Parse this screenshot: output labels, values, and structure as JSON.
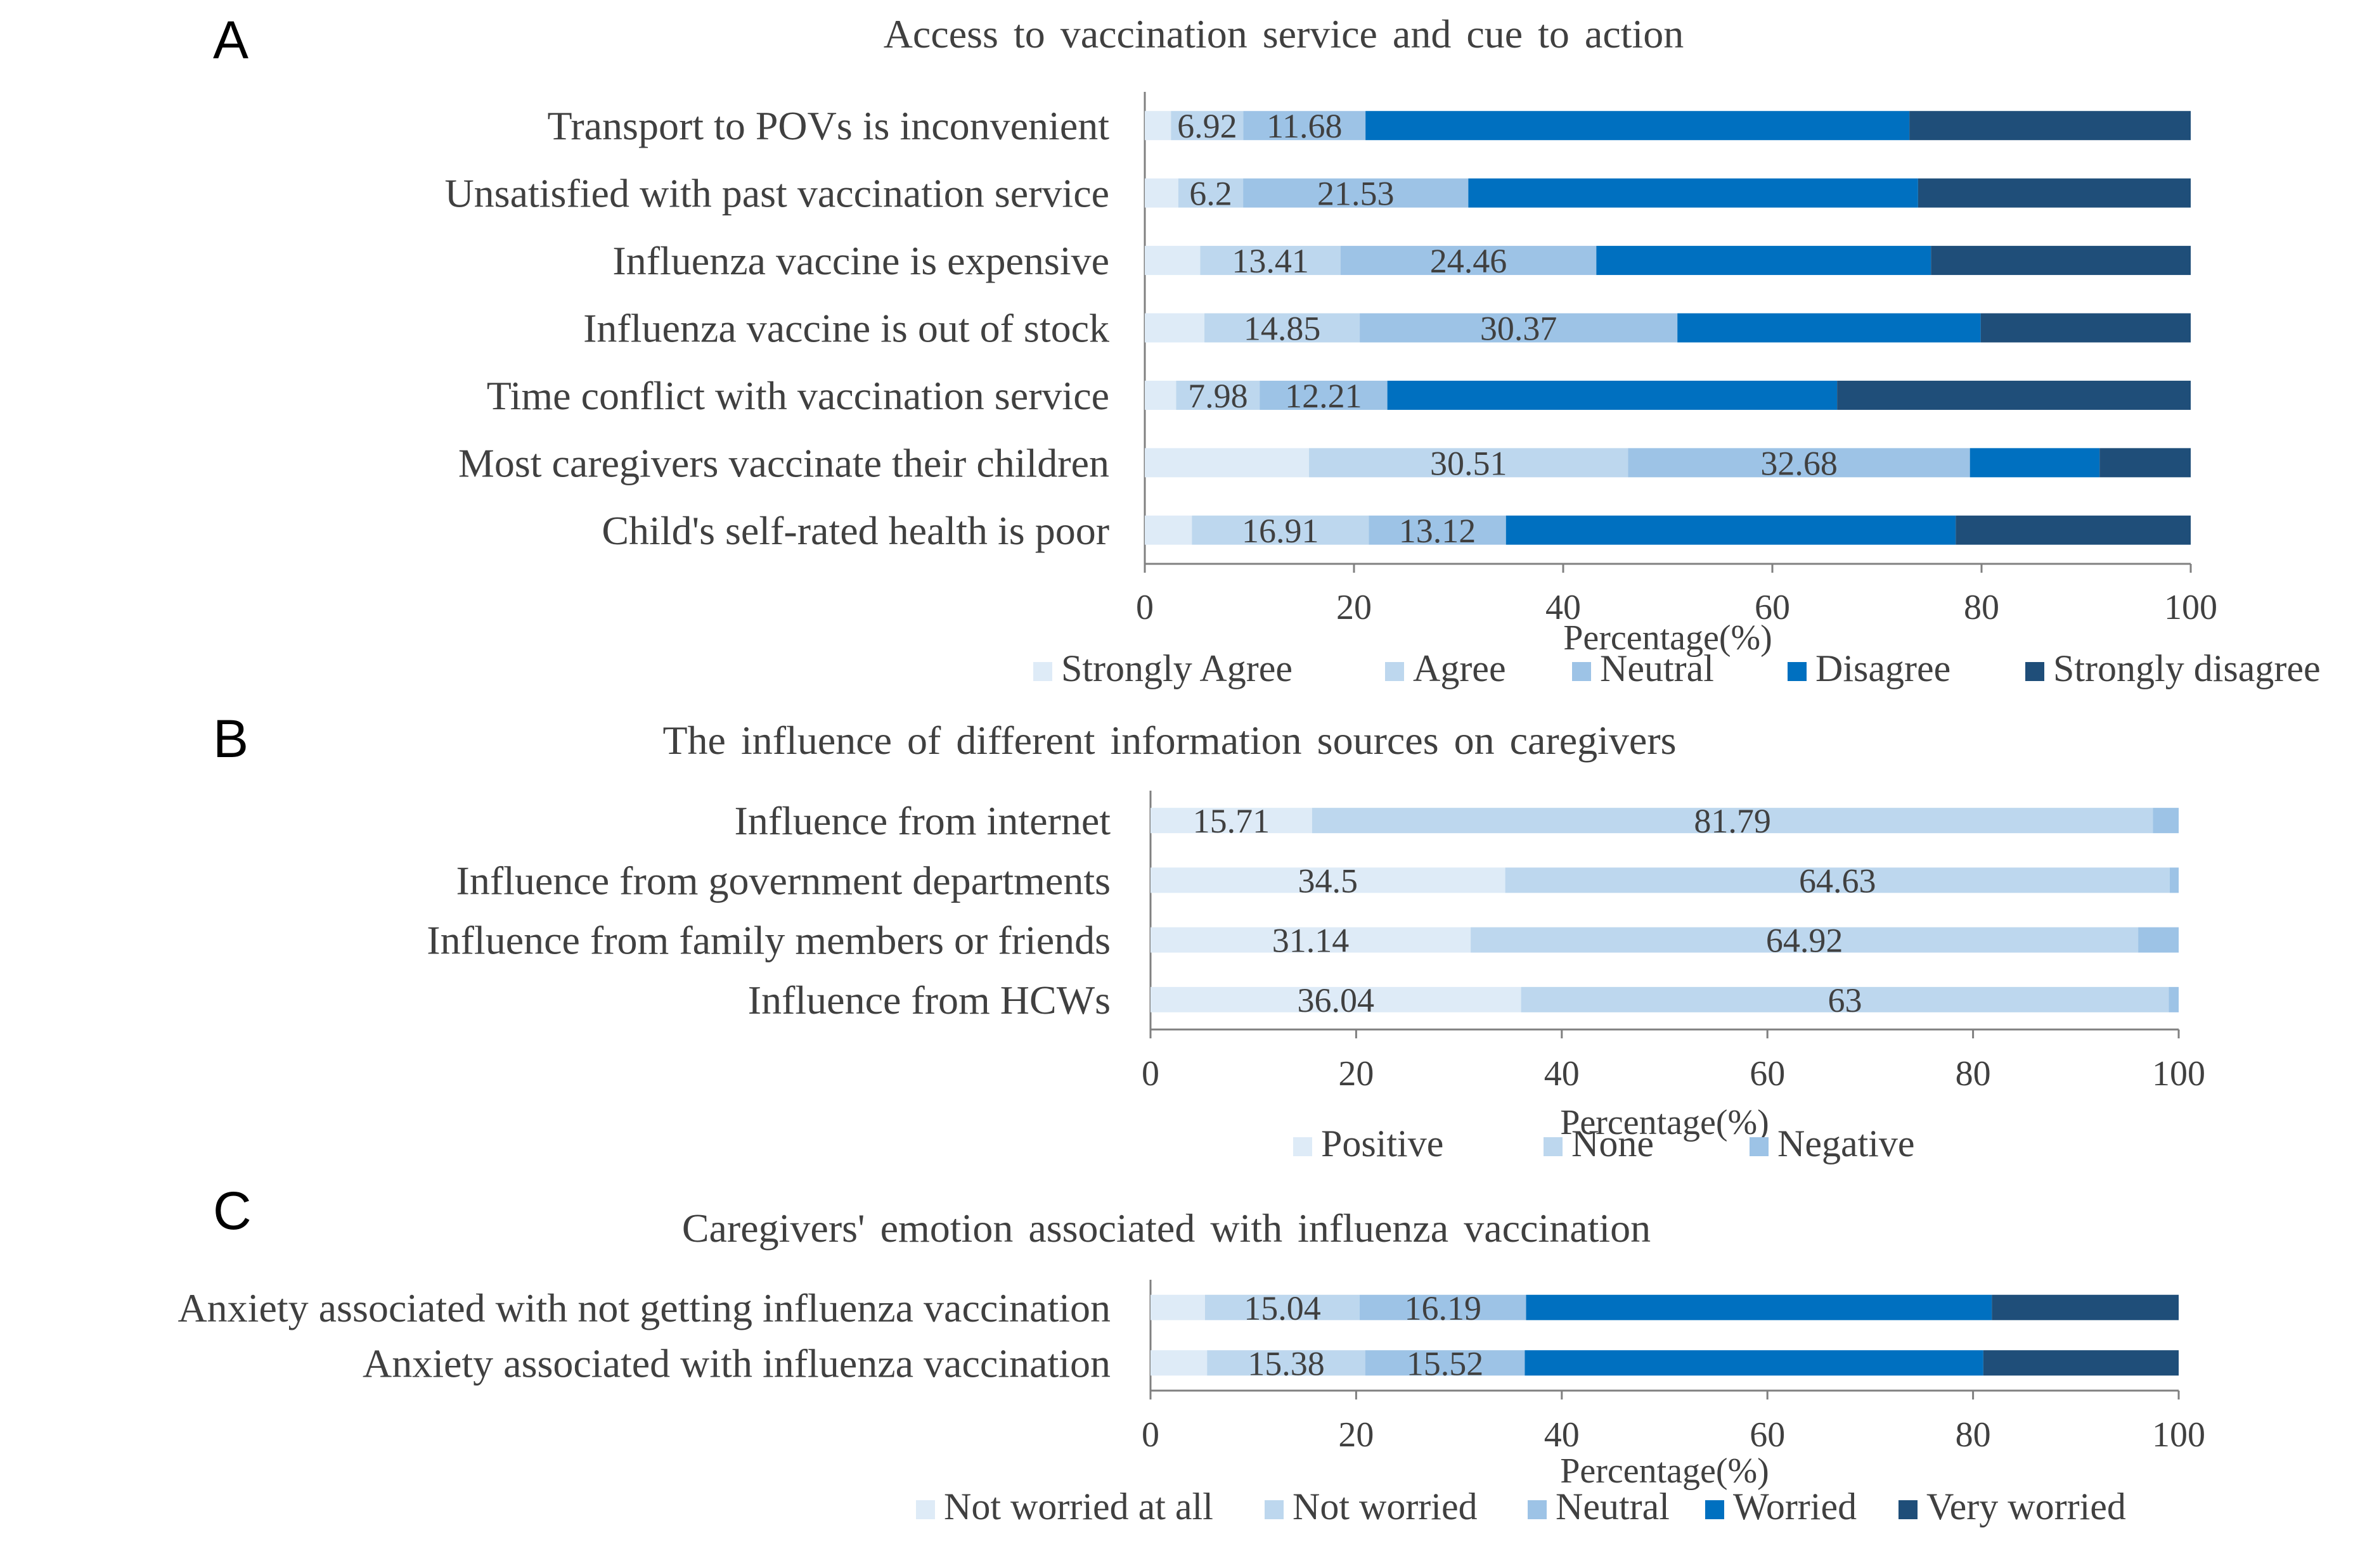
{
  "colors": {
    "strongly_agree": "#deebf7",
    "agree": "#bdd7ee",
    "neutral": "#9dc3e6",
    "disagree": "#0070c0",
    "strongly_disagree": "#1f4e79",
    "positive": "#deebf7",
    "none": "#bdd7ee",
    "negative": "#9dc3e6",
    "not_worried_at_all": "#deebf7",
    "not_worried": "#bdd7ee",
    "neutral_c": "#9dc3e6",
    "worried": "#0070c0",
    "very_worried": "#1f4e79"
  },
  "chart_data": [
    {
      "panel": "A",
      "type": "bar",
      "orientation": "horizontal",
      "stacked": true,
      "title": "Access  to vaccination service and cue to action",
      "xlabel": "Percentage(%)",
      "ylabel": "",
      "xlim": [
        0,
        100
      ],
      "xticks": [
        "0",
        "20",
        "40",
        "60",
        "80",
        "100"
      ],
      "legend_position": "bottom",
      "categories": [
        "Transport to POVs is inconvenient",
        "Unsatisfied with past vaccination service",
        "Influenza vaccine is expensive",
        "Influenza vaccine is out of stock",
        "Time conflict with vaccination service",
        "Most caregivers vaccinate their children",
        "Child's self-rated health is poor"
      ],
      "series": [
        {
          "name": "Strongly Agree",
          "color_key": "strongly_agree",
          "values": [
            2.5,
            3.2,
            5.3,
            5.7,
            3.0,
            15.7,
            4.5
          ],
          "labels": [
            "",
            "",
            "",
            "",
            "",
            "",
            ""
          ]
        },
        {
          "name": "Agree",
          "color_key": "agree",
          "values": [
            6.92,
            6.2,
            13.41,
            14.85,
            7.98,
            30.51,
            16.91
          ],
          "labels": [
            "6.92",
            "6.2",
            "13.41",
            "14.85",
            "7.98",
            "30.51",
            "16.91"
          ]
        },
        {
          "name": "Neutral",
          "color_key": "neutral",
          "values": [
            11.68,
            21.53,
            24.46,
            30.37,
            12.21,
            32.68,
            13.12
          ],
          "labels": [
            "11.68",
            "21.53",
            "24.46",
            "30.37",
            "12.21",
            "32.68",
            "13.12"
          ]
        },
        {
          "name": "Disagree",
          "color_key": "disagree",
          "values": [
            52.0,
            43.0,
            32.0,
            29.0,
            43.0,
            12.4,
            43.0
          ],
          "labels": [
            "",
            "",
            "",
            "",
            "",
            "",
            ""
          ]
        },
        {
          "name": "Strongly disagree",
          "color_key": "strongly_disagree",
          "values": [
            26.9,
            26.07,
            24.83,
            20.08,
            33.81,
            8.71,
            22.47
          ],
          "labels": [
            "",
            "",
            "",
            "",
            "",
            "",
            ""
          ]
        }
      ]
    },
    {
      "panel": "B",
      "type": "bar",
      "orientation": "horizontal",
      "stacked": true,
      "title": "The influence  of different  information  sources  on caregivers",
      "xlabel": "Percentage(%)",
      "ylabel": "",
      "xlim": [
        0,
        100
      ],
      "xticks": [
        "0",
        "20",
        "40",
        "60",
        "80",
        "100"
      ],
      "legend_position": "bottom",
      "categories": [
        "Influence from internet",
        "Influence from government departments",
        "Influence from family members or friends",
        "Influence from HCWs"
      ],
      "series": [
        {
          "name": "Positive",
          "color_key": "positive",
          "values": [
            15.71,
            34.5,
            31.14,
            36.04
          ],
          "labels": [
            "15.71",
            "34.5",
            "31.14",
            "36.04"
          ]
        },
        {
          "name": "None",
          "color_key": "none",
          "values": [
            81.79,
            64.63,
            64.92,
            63.0
          ],
          "labels": [
            "81.79",
            "64.63",
            "64.92",
            "63"
          ]
        },
        {
          "name": "Negative",
          "color_key": "negative",
          "values": [
            2.5,
            0.87,
            3.94,
            0.96
          ],
          "labels": [
            "",
            "",
            "",
            ""
          ]
        }
      ]
    },
    {
      "panel": "C",
      "type": "bar",
      "orientation": "horizontal",
      "stacked": true,
      "title": "Caregivers'  emotion  associated  with  influenza  vaccination",
      "xlabel": "Percentage(%)",
      "ylabel": "",
      "xlim": [
        0,
        100
      ],
      "xticks": [
        "0",
        "20",
        "40",
        "60",
        "80",
        "100"
      ],
      "legend_position": "bottom",
      "categories": [
        "Anxiety associated with not getting influenza vaccination",
        "Anxiety associated with influenza vaccination"
      ],
      "series": [
        {
          "name": "Not worried at all",
          "color_key": "not_worried_at_all",
          "values": [
            5.3,
            5.5
          ],
          "labels": [
            "",
            ""
          ]
        },
        {
          "name": "Not worried",
          "color_key": "not_worried",
          "values": [
            15.04,
            15.38
          ],
          "labels": [
            "15.04",
            "15.38"
          ]
        },
        {
          "name": "Neutral",
          "color_key": "neutral_c",
          "values": [
            16.19,
            15.52
          ],
          "labels": [
            "16.19",
            "15.52"
          ]
        },
        {
          "name": "Worried",
          "color_key": "worried",
          "values": [
            45.3,
            44.6
          ],
          "labels": [
            "",
            ""
          ]
        },
        {
          "name": "Very worried",
          "color_key": "very_worried",
          "values": [
            18.17,
            19.0
          ],
          "labels": [
            "",
            ""
          ]
        }
      ]
    }
  ]
}
